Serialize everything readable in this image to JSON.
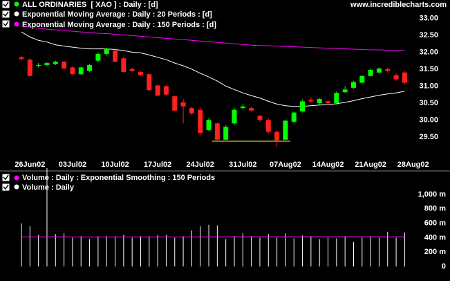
{
  "site": "www.incrediblecharts.com",
  "chart_data": [
    {
      "type": "candlestick",
      "name": "ALL ORDINARIES  [ XAO ] : Daily : [d]",
      "color": "#00ff00",
      "up_color": "#00ff00",
      "down_color": "#ff2020",
      "categories": [
        null,
        "26Jun02",
        null,
        null,
        null,
        null,
        "03Jul02",
        null,
        null,
        null,
        null,
        "10Jul02",
        null,
        null,
        null,
        null,
        "17Jul02",
        null,
        null,
        null,
        null,
        "24Jul02",
        null,
        null,
        null,
        null,
        "31Jul02",
        null,
        null,
        null,
        null,
        "07Aug02",
        null,
        null,
        null,
        null,
        "14Aug02",
        null,
        null,
        null,
        null,
        "21Aug02",
        null,
        null,
        null,
        null,
        "28Aug02"
      ],
      "open": [
        31.85,
        31.78,
        31.6,
        31.62,
        31.65,
        31.72,
        31.55,
        31.35,
        31.45,
        31.75,
        31.95,
        32.05,
        31.82,
        31.5,
        31.42,
        31.35,
        31.02,
        31.0,
        30.7,
        30.52,
        30.35,
        30.3,
        29.7,
        29.9,
        29.42,
        29.9,
        30.35,
        30.35,
        30.12,
        30.0,
        29.65,
        29.42,
        29.95,
        30.25,
        30.6,
        30.5,
        30.55,
        30.5,
        30.82,
        30.95,
        31.1,
        31.3,
        31.4,
        31.5,
        31.32,
        31.4,
        null
      ],
      "high": [
        31.9,
        31.82,
        31.68,
        31.7,
        31.75,
        31.75,
        31.58,
        31.58,
        31.65,
        32.0,
        32.12,
        32.1,
        31.85,
        31.55,
        31.45,
        31.38,
        31.05,
        31.02,
        30.72,
        30.62,
        30.4,
        30.35,
        30.05,
        29.92,
        29.85,
        30.35,
        30.48,
        30.38,
        30.15,
        30.05,
        29.7,
        30.0,
        30.25,
        30.6,
        30.68,
        30.65,
        30.58,
        30.85,
        31.0,
        31.15,
        31.32,
        31.52,
        31.55,
        31.55,
        31.38,
        31.45,
        null
      ],
      "low": [
        31.75,
        31.3,
        31.55,
        31.6,
        31.62,
        31.5,
        31.33,
        31.33,
        31.42,
        31.7,
        31.9,
        31.7,
        31.4,
        31.42,
        31.3,
        30.85,
        30.7,
        30.72,
        30.25,
        29.9,
        30.15,
        29.55,
        29.68,
        29.4,
        29.4,
        29.85,
        30.3,
        30.25,
        29.95,
        29.6,
        29.2,
        29.4,
        29.92,
        30.22,
        30.5,
        30.45,
        30.45,
        30.45,
        30.8,
        30.92,
        31.08,
        31.28,
        31.38,
        31.4,
        31.15,
        31.05,
        null
      ],
      "close": [
        31.8,
        31.3,
        31.62,
        31.68,
        31.72,
        31.52,
        31.35,
        31.55,
        31.62,
        31.95,
        32.1,
        31.72,
        31.42,
        31.45,
        31.32,
        30.88,
        30.72,
        30.75,
        30.28,
        30.4,
        30.2,
        29.62,
        30.0,
        29.42,
        29.8,
        30.3,
        30.4,
        30.28,
        30.0,
        29.65,
        29.4,
        29.98,
        30.22,
        30.55,
        30.55,
        30.62,
        30.5,
        30.8,
        30.9,
        31.12,
        31.3,
        31.48,
        31.52,
        31.45,
        31.2,
        31.1,
        null
      ],
      "series": [
        {
          "name": "Exponential Moving Average : Daily : 20 Periods : [d]",
          "color": "#ffffff",
          "values": [
            32.6,
            32.45,
            32.35,
            32.3,
            32.22,
            32.18,
            32.15,
            32.12,
            32.1,
            32.1,
            32.1,
            32.08,
            32.05,
            32.0,
            31.98,
            31.92,
            31.85,
            31.78,
            31.68,
            31.6,
            31.5,
            31.38,
            31.27,
            31.15,
            31.0,
            30.9,
            30.8,
            30.72,
            30.65,
            30.55,
            30.47,
            30.42,
            30.4,
            30.4,
            30.42,
            30.44,
            30.45,
            30.48,
            30.52,
            30.57,
            30.63,
            30.68,
            30.73,
            30.77,
            30.8,
            30.85,
            null
          ]
        },
        {
          "name": "Exponential Moving Average : Daily : 150 Periods : [d]",
          "color": "#ff00ff",
          "values": [
            32.78,
            32.74,
            32.71,
            32.68,
            32.66,
            32.64,
            32.62,
            32.6,
            32.58,
            32.56,
            32.55,
            32.53,
            32.51,
            32.49,
            32.47,
            32.45,
            32.43,
            32.41,
            32.39,
            32.37,
            32.35,
            32.33,
            32.31,
            32.29,
            32.27,
            32.25,
            32.23,
            32.21,
            32.2,
            32.19,
            32.18,
            32.17,
            32.16,
            32.15,
            32.14,
            32.13,
            32.12,
            32.11,
            32.1,
            32.09,
            32.08,
            32.07,
            32.07,
            32.06,
            32.05,
            32.05,
            null
          ]
        }
      ],
      "ylim": [
        29.15,
        33.5
      ],
      "yticks": [
        {
          "value": 29.5,
          "label": "29.50"
        },
        {
          "value": 30,
          "label": "30.00"
        },
        {
          "value": 30.5,
          "label": "30.50"
        },
        {
          "value": 31,
          "label": "31.00"
        },
        {
          "value": 31.5,
          "label": "31.50"
        },
        {
          "value": 32,
          "label": "32.00"
        },
        {
          "value": 32.5,
          "label": "32.50"
        },
        {
          "value": 33,
          "label": "33.00"
        }
      ]
    },
    {
      "type": "bar",
      "series": [
        {
          "name": "Volume : Daily : Exponential Smoothing : 150 Periods",
          "color": "#ff00ff",
          "type": "line",
          "values": [
            410,
            410,
            410,
            412,
            412,
            412,
            411,
            411,
            411,
            411,
            411,
            411,
            411,
            411,
            411,
            411,
            411,
            411,
            411,
            411,
            411,
            412,
            412,
            412,
            412,
            412,
            412,
            412,
            412,
            412,
            412,
            412,
            412,
            412,
            412,
            412,
            412,
            412,
            412,
            412,
            412,
            412,
            412,
            412,
            412,
            412,
            null
          ]
        },
        {
          "name": "Volume : Daily",
          "color": "#ffffff",
          "type": "bar",
          "values": [
            600,
            560,
            440,
            1365,
            450,
            460,
            400,
            420,
            380,
            420,
            420,
            420,
            440,
            400,
            420,
            420,
            440,
            440,
            400,
            420,
            500,
            560,
            580,
            570,
            380,
            420,
            460,
            420,
            400,
            450,
            400,
            460,
            390,
            430,
            420,
            380,
            400,
            390,
            420,
            340,
            400,
            420,
            400,
            480,
            400,
            470,
            null
          ]
        }
      ],
      "ylim": [
        0,
        1365
      ],
      "yticks": [
        0,
        {
          "value": 200,
          "label": "200 m"
        },
        {
          "value": 400,
          "label": "400 m"
        },
        {
          "value": 600,
          "label": "600 m"
        },
        {
          "value": 800,
          "label": "800 m"
        },
        {
          "value": 1000,
          "label": "1,000 m"
        }
      ]
    }
  ]
}
